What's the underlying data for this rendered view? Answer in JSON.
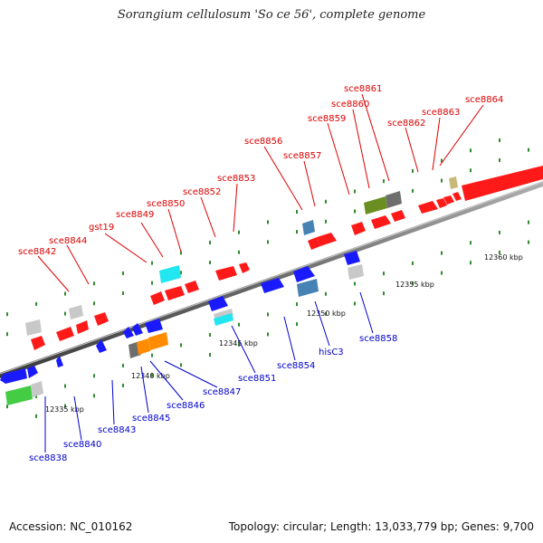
{
  "title": "Sorangium cellulosum 'So ce 56', complete genome",
  "footer": {
    "accession": "Accession: NC_010162",
    "summary": "Topology: circular; Length: 13,033,779 bp; Genes: 9,700"
  },
  "scale_labels": [
    "12335 kbp",
    "12340 kbp",
    "12345 kbp",
    "12350 kbp",
    "12355 kbp",
    "12360 kbp"
  ],
  "colors": {
    "forward_label": "#dd0000",
    "reverse_label": "#0000cc",
    "red": "#ff1a1a",
    "blue": "#1a1aff",
    "gray": "#c8c8c8",
    "darkgray": "#6e6e6e",
    "green": "#44cc44",
    "olive": "#6b8e23",
    "orange": "#ff8c00",
    "cyan": "#22e6f0",
    "steel": "#4682b4",
    "tan": "#c8b87a"
  },
  "forward_genes": [
    "sce8842",
    "sce8844",
    "gst19",
    "sce8849",
    "sce8850",
    "sce8852",
    "sce8853",
    "sce8856",
    "sce8857",
    "sce8859",
    "sce8860",
    "sce8861",
    "sce8862",
    "sce8863",
    "sce8864"
  ],
  "reverse_genes": [
    "sce8838",
    "sce8840",
    "sce8843",
    "sce8845",
    "sce8846",
    "sce8847",
    "sce8851",
    "sce8854",
    "hisC3",
    "sce8858"
  ]
}
